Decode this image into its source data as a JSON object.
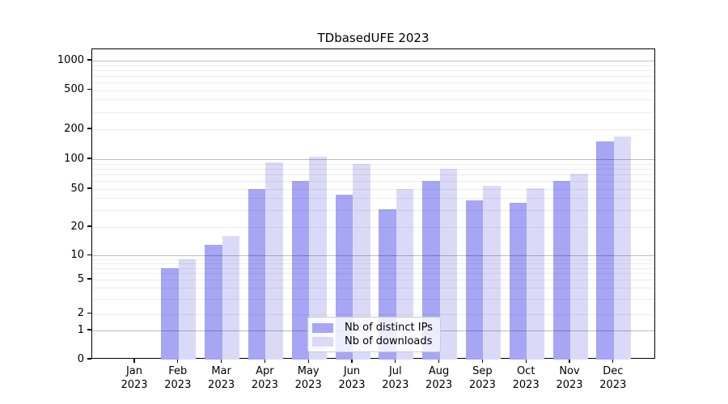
{
  "chart_data": {
    "type": "bar",
    "title": "TDbasedUFE 2023",
    "categories": [
      "Jan 2023",
      "Feb 2023",
      "Mar 2023",
      "Apr 2023",
      "May 2023",
      "Jun 2023",
      "Jul 2023",
      "Aug 2023",
      "Sep 2023",
      "Oct 2023",
      "Nov 2023",
      "Dec 2023"
    ],
    "series": [
      {
        "name": "Nb of distinct IPs",
        "color": "#a6a6f4",
        "values": [
          0,
          7,
          13,
          50,
          60,
          44,
          31,
          60,
          38,
          36,
          60,
          150
        ]
      },
      {
        "name": "Nb of downloads",
        "color": "#dadaf8",
        "values": [
          0,
          9,
          16,
          93,
          105,
          90,
          50,
          80,
          54,
          51,
          72,
          170
        ]
      }
    ],
    "xlabel": "",
    "ylabel": "",
    "yscale": "symlog",
    "y_ticks": [
      0,
      1,
      2,
      5,
      10,
      20,
      50,
      100,
      200,
      500,
      1000
    ],
    "ylim": [
      0,
      1300
    ],
    "grid": "both, horizontal only, drawn over bars",
    "legend_position": "lower center"
  },
  "colors": {
    "background": "#ffffff",
    "axis": "#000000",
    "major_grid": "#bdbdbd",
    "minor_grid": "#ececec"
  }
}
